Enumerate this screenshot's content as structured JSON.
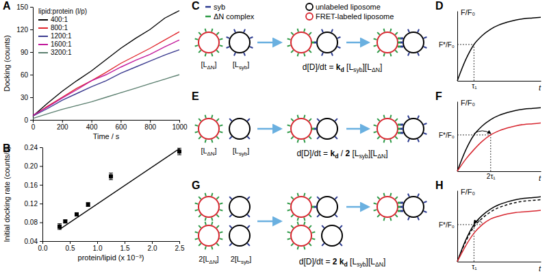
{
  "chart_data": [
    {
      "type": "line",
      "title": "A",
      "xlabel": "Time / s",
      "ylabel": "Docking (counts)",
      "legend": "upper left",
      "legend_title": "lipid:protein (l/p)",
      "x": [
        0,
        100,
        200,
        300,
        400,
        500,
        600,
        700,
        800,
        900,
        1000
      ],
      "xlim": [
        0,
        1000
      ],
      "xticks": [
        0,
        200,
        400,
        600,
        800,
        1000
      ],
      "ylim": [
        0,
        150
      ],
      "yticks": [
        0,
        30,
        60,
        90,
        120,
        150
      ],
      "series": [
        {
          "name": "400:1",
          "color": "#000000",
          "values": [
            5,
            22,
            38,
            52,
            65,
            80,
            95,
            108,
            120,
            135,
            145
          ]
        },
        {
          "name": "800:1",
          "color": "#e0242b",
          "values": [
            5,
            18,
            30,
            42,
            52,
            63,
            75,
            85,
            95,
            106,
            117
          ]
        },
        {
          "name": "1200:1",
          "color": "#3b3b8f",
          "values": [
            5,
            15,
            26,
            35,
            44,
            52,
            62,
            70,
            78,
            86,
            93
          ]
        },
        {
          "name": "1600:1",
          "color": "#c21a9c",
          "values": [
            6,
            17,
            29,
            40,
            52,
            60,
            70,
            79,
            87,
            97,
            106
          ]
        },
        {
          "name": "3200:1",
          "color": "#5b7f6f",
          "values": [
            2,
            8,
            14,
            19,
            24,
            30,
            36,
            42,
            48,
            54,
            60
          ]
        }
      ]
    },
    {
      "type": "scatter",
      "title": "B",
      "xlabel": "protein/lipid (x 10⁻³)",
      "ylabel": "Initial docking rate (counts/s)",
      "xlim": [
        0,
        2.5
      ],
      "xticks": [
        {
          "value": 0,
          "label": "0.0"
        },
        0.5,
        {
          "value": 1,
          "label": "1.0"
        },
        1.5,
        {
          "value": 2,
          "label": "2.0"
        },
        2.5
      ],
      "ylim": [
        0.04,
        0.24
      ],
      "yticks": [
        0.04,
        0.08,
        0.12,
        0.16,
        {
          "value": 0.2,
          "label": "0.20"
        },
        0.24
      ],
      "series": [
        {
          "type": "scatter",
          "marker": "square",
          "color": "#000000",
          "x": [
            0.3125,
            0.4167,
            0.625,
            0.8333,
            1.25,
            2.5
          ],
          "values": [
            0.071,
            0.082,
            0.097,
            0.118,
            0.178,
            0.231
          ],
          "errors": [
            0.006,
            0.003,
            0.002,
            0.004,
            0.007,
            0.007
          ]
        },
        {
          "type": "line",
          "color": "#000000",
          "x": [
            0.3125,
            2.5
          ],
          "values": [
            0.065,
            0.237
          ]
        }
      ]
    },
    {
      "type": "line",
      "title": "D",
      "xlabel": "t",
      "ylabel": "F/F₀",
      "x": [
        0,
        0.1,
        0.2,
        0.3,
        0.4,
        0.5,
        0.6,
        0.7,
        0.8,
        0.9,
        1
      ],
      "xlim": [
        0,
        1
      ],
      "xticks": [
        {
          "value": 0.2,
          "label": "τ₁"
        }
      ],
      "ylim": [
        0,
        1
      ],
      "yticks": [
        {
          "value": 0.52,
          "label": "F*/F₀"
        }
      ],
      "series": [
        {
          "color": "#000000",
          "values": [
            0,
            0.3,
            0.52,
            0.65,
            0.74,
            0.8,
            0.84,
            0.87,
            0.89,
            0.9,
            0.91
          ]
        }
      ]
    },
    {
      "type": "line",
      "title": "F",
      "xlabel": "t",
      "ylabel": "F/F₀",
      "x": [
        0,
        0.1,
        0.2,
        0.3,
        0.4,
        0.5,
        0.6,
        0.7,
        0.8,
        0.9,
        1
      ],
      "xlim": [
        0,
        1
      ],
      "xticks": [
        {
          "value": 0.4,
          "label": "2τ₁"
        }
      ],
      "ylim": [
        0,
        1
      ],
      "yticks": [
        {
          "value": 0.52,
          "label": "F*/F₀"
        }
      ],
      "series": [
        {
          "color": "#000000",
          "values": [
            0,
            0.3,
            0.52,
            0.65,
            0.74,
            0.8,
            0.84,
            0.87,
            0.89,
            0.9,
            0.91
          ]
        },
        {
          "color": "#d7262f",
          "values": [
            0,
            0.17,
            0.31,
            0.43,
            0.52,
            0.58,
            0.62,
            0.65,
            0.67,
            0.68,
            0.69
          ]
        }
      ]
    },
    {
      "type": "line",
      "title": "H",
      "xlabel": "t",
      "ylabel": "F/F₀",
      "x": [
        0,
        0.1,
        0.2,
        0.3,
        0.4,
        0.5,
        0.6,
        0.7,
        0.8,
        0.9,
        1
      ],
      "xlim": [
        0,
        1
      ],
      "xticks": [
        {
          "value": 0.2,
          "label": "τ₁"
        }
      ],
      "ylim": [
        0,
        1
      ],
      "yticks": [
        {
          "value": 0.52,
          "label": "F*/F₀"
        }
      ],
      "series": [
        {
          "color": "#000000",
          "values": [
            0,
            0.3,
            0.52,
            0.65,
            0.74,
            0.8,
            0.84,
            0.87,
            0.89,
            0.9,
            0.91
          ]
        },
        {
          "color": "#000000",
          "line_style": "dashed",
          "values": [
            0,
            0.28,
            0.49,
            0.61,
            0.7,
            0.76,
            0.8,
            0.83,
            0.85,
            0.86,
            0.87
          ]
        },
        {
          "color": "#d7262f",
          "values": [
            0,
            0.22,
            0.4,
            0.52,
            0.6,
            0.64,
            0.67,
            0.69,
            0.7,
            0.71,
            0.72
          ]
        }
      ]
    }
  ],
  "diagram": {
    "legend": [
      {
        "label": "syb",
        "color": "#2b3a8f"
      },
      {
        "label": "ΔN complex",
        "color": "#2e9a47"
      },
      {
        "label": "unlabeled liposome",
        "color": "#000000"
      },
      {
        "label": "FRET-labeled liposome",
        "color": "#d7262f"
      }
    ],
    "panels": [
      {
        "label": "C",
        "left_label": [
          {
            "t": "[L"
          },
          {
            "t": "ΔN",
            "sub": true
          },
          {
            "t": "]"
          }
        ],
        "right_label": [
          {
            "t": "[L"
          },
          {
            "t": "syb",
            "sub": true
          },
          {
            "t": "]"
          }
        ],
        "equation": [
          {
            "t": "d[D]/dt = "
          },
          {
            "t": "k",
            "bold": true
          },
          {
            "t": "d",
            "bold": true,
            "sub": true
          },
          {
            "t": " [L"
          },
          {
            "t": "syb",
            "sub": true
          },
          {
            "t": "][L"
          },
          {
            "t": "ΔN",
            "sub": true
          },
          {
            "t": "]"
          }
        ]
      },
      {
        "label": "E",
        "left_label": [
          {
            "t": "[L"
          },
          {
            "t": "ΔN",
            "sub": true
          },
          {
            "t": "]"
          }
        ],
        "right_label": [
          {
            "t": "[L"
          },
          {
            "t": "syb",
            "sub": true
          },
          {
            "t": "]"
          }
        ],
        "equation": [
          {
            "t": "d[D]/dt = "
          },
          {
            "t": "k",
            "bold": true
          },
          {
            "t": "d",
            "bold": true,
            "sub": true
          },
          {
            "t": " / "
          },
          {
            "t": "2",
            "bold": true
          },
          {
            "t": " [L"
          },
          {
            "t": "syb",
            "sub": true
          },
          {
            "t": "][L"
          },
          {
            "t": "ΔN",
            "sub": true
          },
          {
            "t": "]"
          }
        ]
      },
      {
        "label": "G",
        "left_label": [
          {
            "t": "2[L"
          },
          {
            "t": "ΔN",
            "sub": true
          },
          {
            "t": "]"
          }
        ],
        "right_label": [
          {
            "t": "2[L"
          },
          {
            "t": "syb",
            "sub": true
          },
          {
            "t": "]"
          }
        ],
        "equation": [
          {
            "t": "d[D]/dt = "
          },
          {
            "t": "2 ",
            "bold": true
          },
          {
            "t": "k",
            "bold": true
          },
          {
            "t": "d",
            "bold": true,
            "sub": true
          },
          {
            "t": " [L"
          },
          {
            "t": "syb",
            "sub": true
          },
          {
            "t": "][L"
          },
          {
            "t": "ΔN",
            "sub": true
          },
          {
            "t": "]"
          }
        ]
      }
    ]
  }
}
